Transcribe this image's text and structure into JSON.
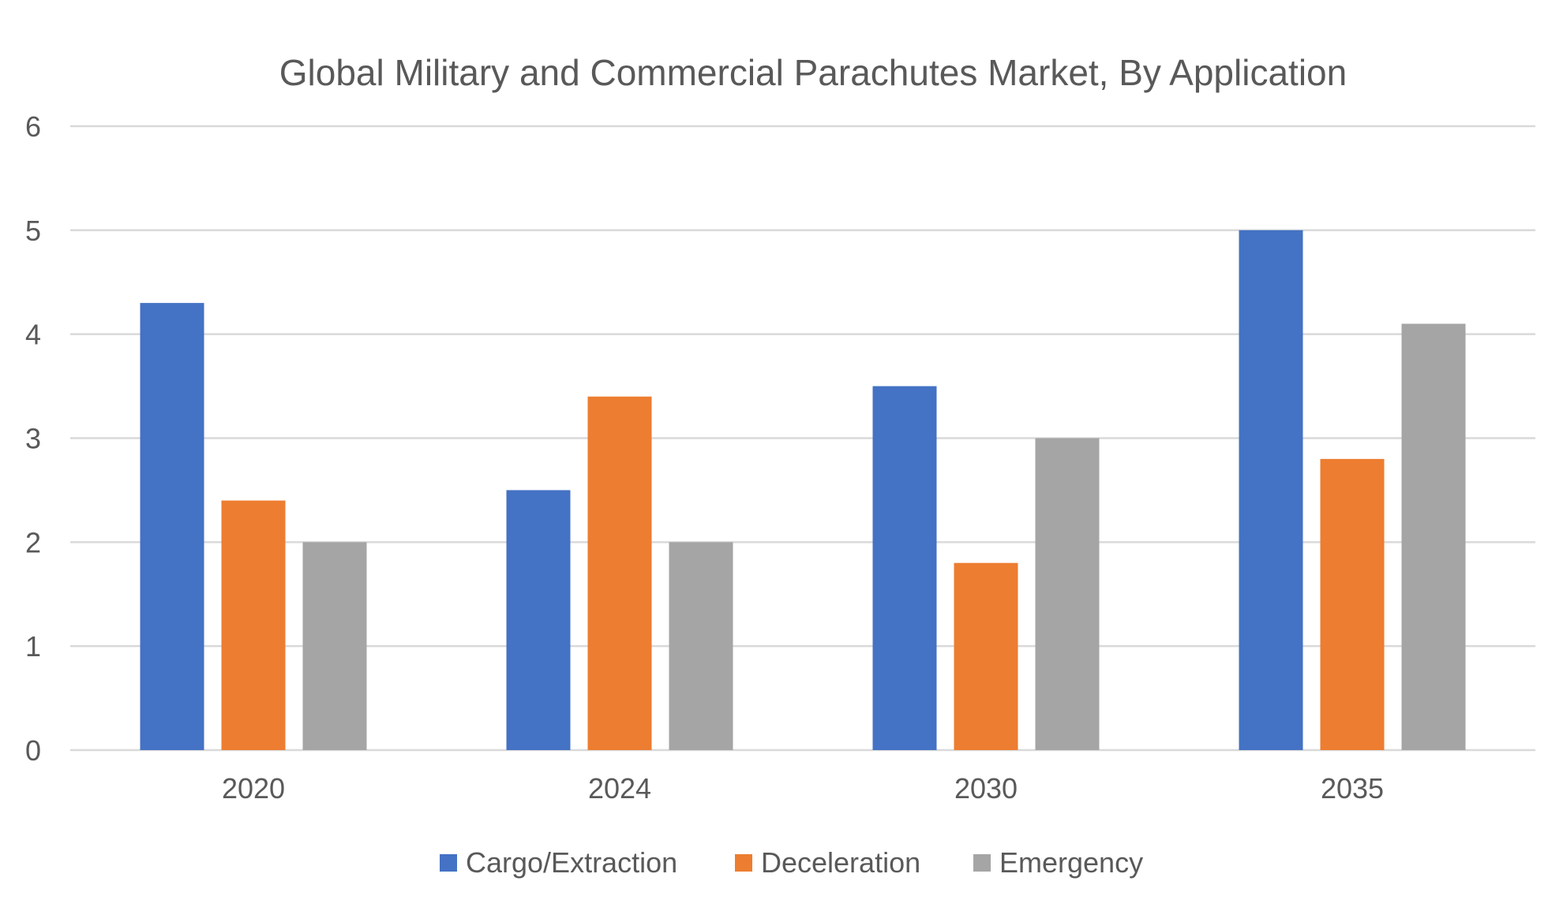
{
  "chart_data": {
    "type": "bar",
    "title": "Global Military and Commercial Parachutes Market, By Application",
    "xlabel": "",
    "ylabel": "",
    "categories": [
      "2020",
      "2024",
      "2030",
      "2035"
    ],
    "series": [
      {
        "name": "Cargo/Extraction",
        "color": "#4472C4",
        "values": [
          4.3,
          2.5,
          3.5,
          5.0
        ]
      },
      {
        "name": "Deceleration",
        "color": "#ED7D31",
        "values": [
          2.4,
          3.4,
          1.8,
          2.8
        ]
      },
      {
        "name": "Emergency",
        "color": "#A5A5A5",
        "values": [
          2.0,
          2.0,
          3.0,
          4.1
        ]
      }
    ],
    "ylim": [
      0,
      6
    ],
    "yticks": [
      "0",
      "1",
      "2",
      "3",
      "4",
      "5",
      "6"
    ],
    "grid": true,
    "gridline_color": "#D9D9D9",
    "text_color": "#595959",
    "legend_position": "bottom"
  }
}
